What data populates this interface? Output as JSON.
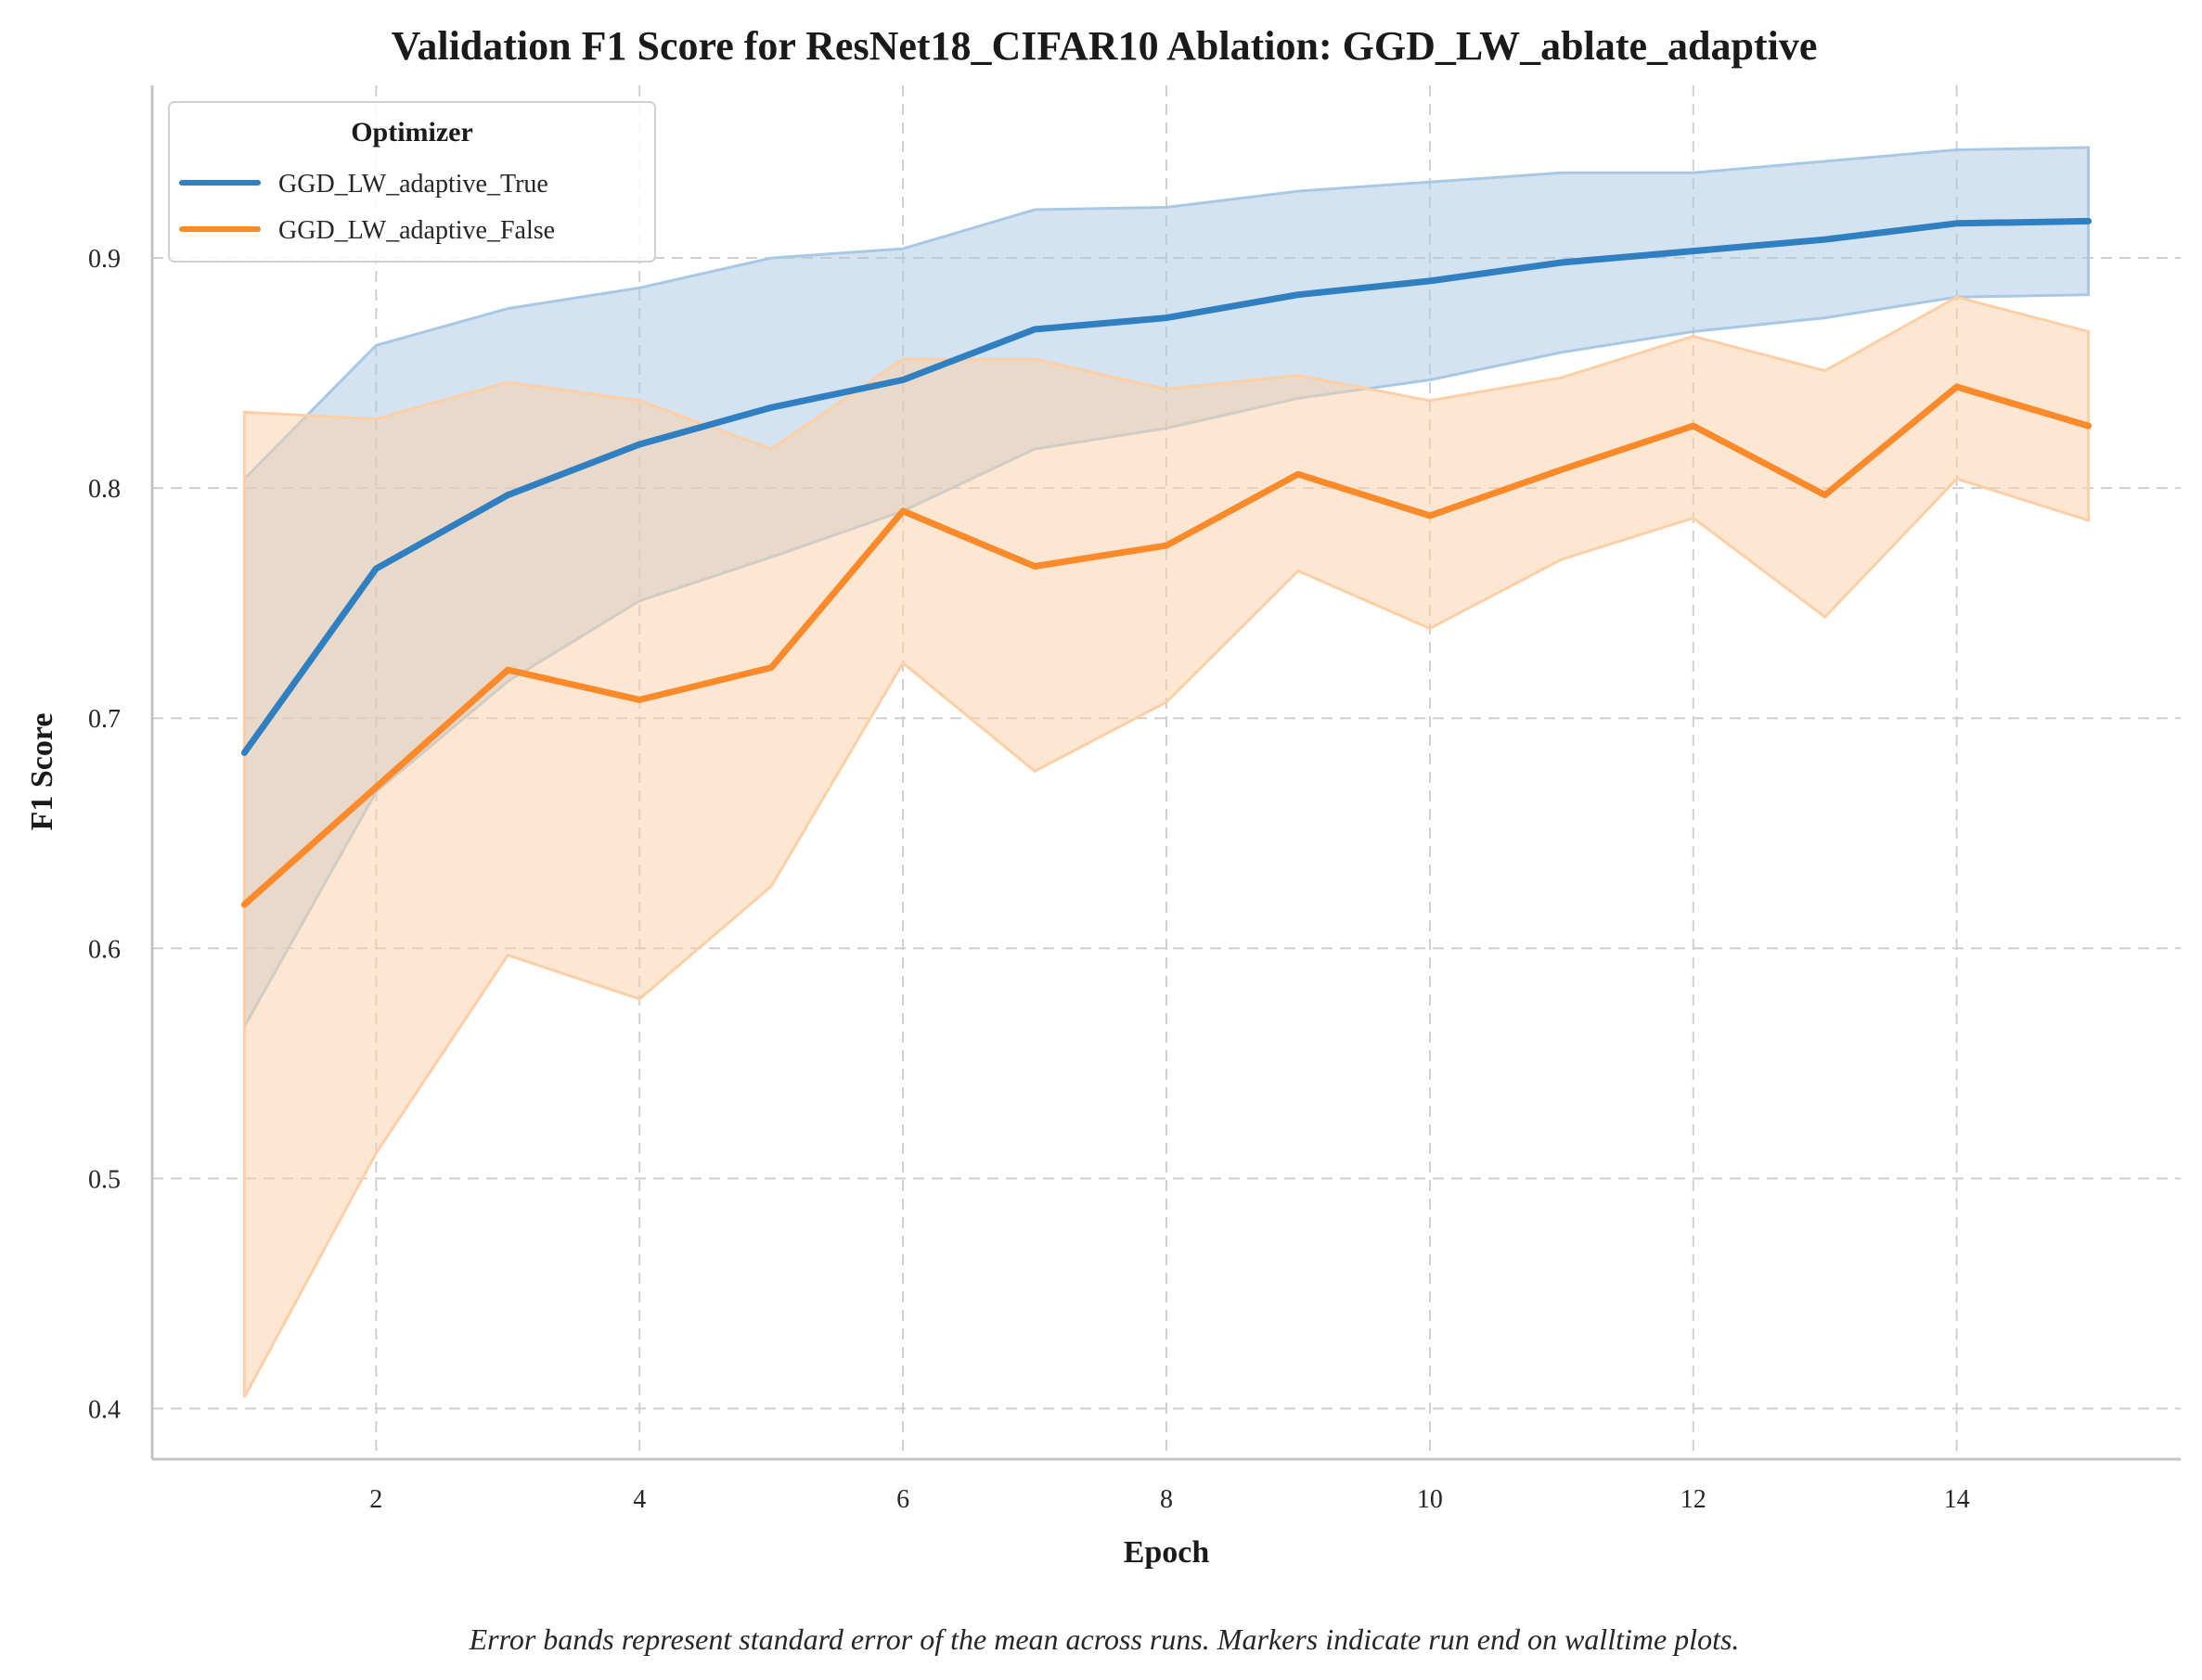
{
  "chart_data": {
    "type": "line",
    "title": "Validation F1 Score for ResNet18_CIFAR10 Ablation: GGD_LW_ablate_adaptive",
    "xlabel": "Epoch",
    "ylabel": "F1 Score",
    "xlim": [
      0.3,
      15.7
    ],
    "ylim": [
      0.378,
      0.975
    ],
    "xticks": [
      2,
      4,
      6,
      8,
      10,
      12,
      14
    ],
    "yticks": [
      0.4,
      0.5,
      0.6,
      0.7,
      0.8,
      0.9
    ],
    "grid": true,
    "legend": {
      "title": "Optimizer",
      "placement": "top-left"
    },
    "caption": "Error bands represent standard error of the mean across runs. Markers indicate run end on walltime plots.",
    "x": [
      1,
      2,
      3,
      4,
      5,
      6,
      7,
      8,
      9,
      10,
      11,
      12,
      13,
      14,
      15
    ],
    "series": [
      {
        "name": "GGD_LW_adaptive_True",
        "color": "#2f7fc1",
        "band_color": "#a9c8e3",
        "values": [
          0.685,
          0.765,
          0.797,
          0.819,
          0.835,
          0.847,
          0.869,
          0.874,
          0.884,
          0.89,
          0.898,
          0.903,
          0.908,
          0.915,
          0.916
        ],
        "upper": [
          0.804,
          0.862,
          0.878,
          0.887,
          0.9,
          0.904,
          0.921,
          0.922,
          0.929,
          0.933,
          0.937,
          0.937,
          0.942,
          0.947,
          0.948
        ],
        "lower": [
          0.566,
          0.668,
          0.716,
          0.751,
          0.77,
          0.79,
          0.817,
          0.826,
          0.839,
          0.847,
          0.859,
          0.868,
          0.874,
          0.883,
          0.884
        ]
      },
      {
        "name": "GGD_LW_adaptive_False",
        "color": "#fd8a2a",
        "band_color": "#fdcfa6",
        "values": [
          0.619,
          0.67,
          0.721,
          0.708,
          0.722,
          0.79,
          0.766,
          0.775,
          0.806,
          0.788,
          0.808,
          0.827,
          0.797,
          0.844,
          0.827
        ],
        "upper": [
          0.833,
          0.83,
          0.846,
          0.838,
          0.817,
          0.856,
          0.856,
          0.843,
          0.849,
          0.838,
          0.848,
          0.866,
          0.851,
          0.883,
          0.868
        ],
        "lower": [
          0.405,
          0.511,
          0.597,
          0.578,
          0.627,
          0.724,
          0.677,
          0.707,
          0.764,
          0.739,
          0.769,
          0.787,
          0.744,
          0.804,
          0.786
        ]
      }
    ]
  }
}
